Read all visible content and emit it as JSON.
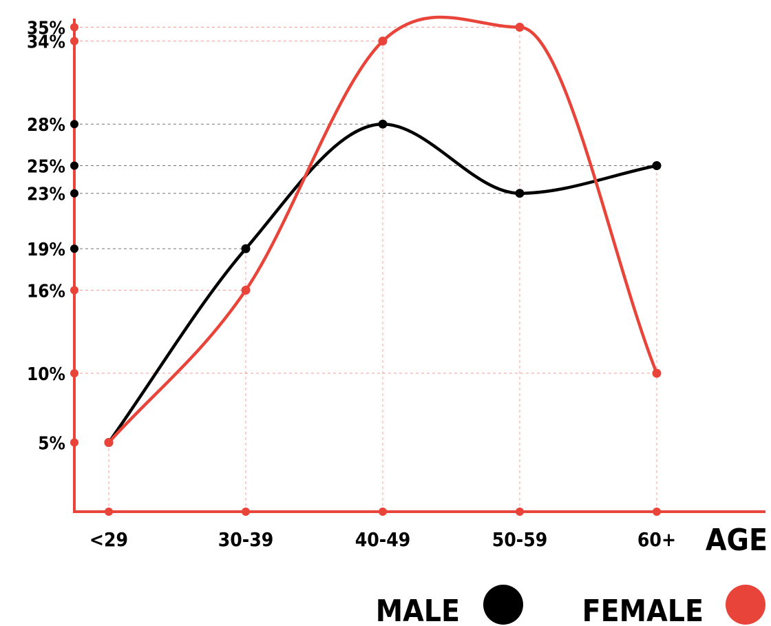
{
  "colors": {
    "male": "#000000",
    "female": "#e8443a",
    "axis": "#e8443a"
  },
  "chart_data": {
    "type": "line",
    "x": [
      "<29",
      "30-39",
      "40-49",
      "50-59",
      "60+"
    ],
    "xlabel": "AGE",
    "ylabel": "",
    "ylim": [
      0,
      35
    ],
    "yticks": [
      {
        "value": 35,
        "label": "35%"
      },
      {
        "value": 34,
        "label": "34%"
      },
      {
        "value": 28,
        "label": "28%"
      },
      {
        "value": 25,
        "label": "25%"
      },
      {
        "value": 23,
        "label": "23%"
      },
      {
        "value": 19,
        "label": "19%"
      },
      {
        "value": 16,
        "label": "16%"
      },
      {
        "value": 10,
        "label": "10%"
      },
      {
        "value": 5,
        "label": "5%"
      }
    ],
    "series": [
      {
        "name": "MALE",
        "values": [
          5,
          19,
          28,
          23,
          25
        ]
      },
      {
        "name": "FEMALE",
        "values": [
          5,
          16,
          34,
          35,
          10
        ]
      }
    ],
    "legend": "bottom-right",
    "grid": "dashed guides at data points"
  }
}
